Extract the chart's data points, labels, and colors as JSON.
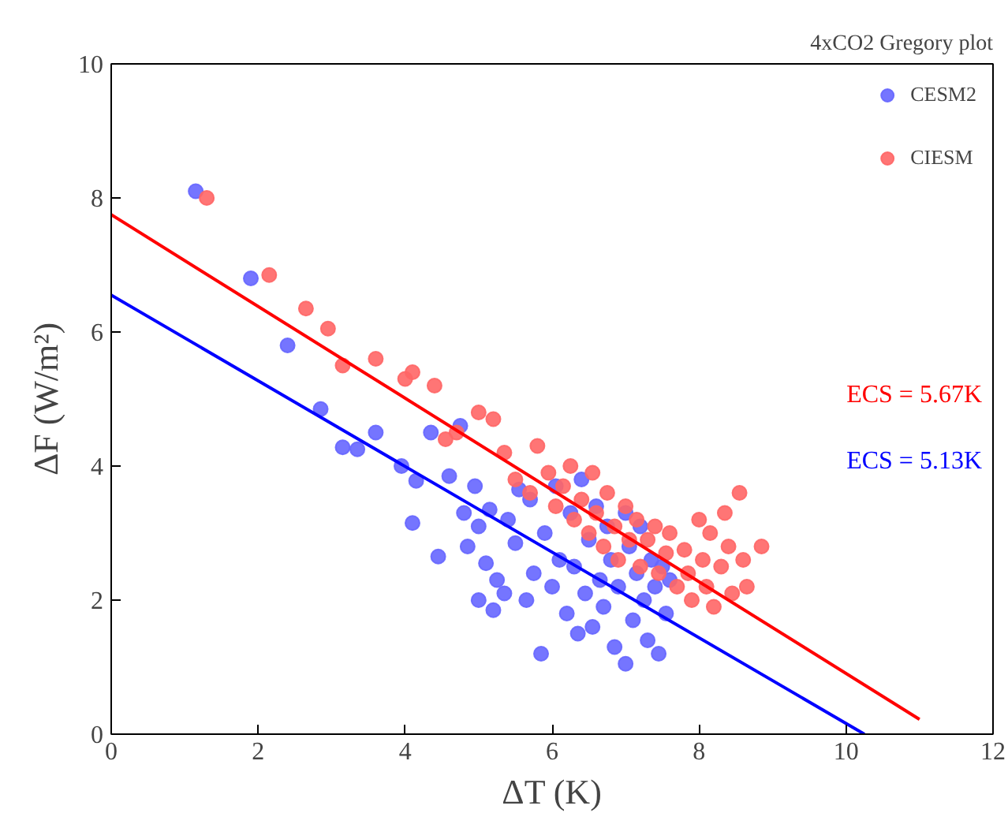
{
  "chart_data": {
    "type": "scatter",
    "title": "4xCO2 Gregory plot",
    "xlabel": "ΔT (K)",
    "ylabel": "ΔF (W/m²)",
    "xlim": [
      0,
      12
    ],
    "ylim": [
      0,
      10
    ],
    "xticks": [
      0,
      2,
      4,
      6,
      8,
      10,
      12
    ],
    "yticks": [
      0,
      2,
      4,
      6,
      8,
      10
    ],
    "grid": false,
    "legend": "top right",
    "series": [
      {
        "name": "CESM2",
        "color": "#6666ff",
        "marker": "circle",
        "x": [
          1.15,
          1.9,
          2.4,
          2.85,
          3.15,
          3.35,
          3.6,
          3.95,
          4.1,
          4.15,
          4.35,
          4.45,
          4.6,
          4.75,
          4.8,
          4.85,
          4.95,
          5.0,
          5.0,
          5.1,
          5.15,
          5.2,
          5.25,
          5.35,
          5.4,
          5.5,
          5.55,
          5.65,
          5.7,
          5.75,
          5.85,
          5.9,
          6.0,
          6.05,
          6.1,
          6.2,
          6.25,
          6.3,
          6.35,
          6.4,
          6.45,
          6.5,
          6.55,
          6.6,
          6.65,
          6.7,
          6.75,
          6.8,
          6.85,
          6.9,
          7.0,
          7.0,
          7.05,
          7.1,
          7.15,
          7.2,
          7.25,
          7.3,
          7.35,
          7.4,
          7.45,
          7.5,
          7.55,
          7.6
        ],
        "values": [
          8.1,
          6.8,
          5.8,
          4.85,
          4.28,
          4.25,
          4.5,
          4.0,
          3.15,
          3.78,
          4.5,
          2.65,
          3.85,
          4.6,
          3.3,
          2.8,
          3.7,
          2.0,
          3.1,
          2.55,
          3.35,
          1.85,
          2.3,
          2.1,
          3.2,
          2.85,
          3.65,
          2.0,
          3.5,
          2.4,
          1.2,
          3.0,
          2.2,
          3.7,
          2.6,
          1.8,
          3.3,
          2.5,
          1.5,
          3.8,
          2.1,
          2.9,
          1.6,
          3.4,
          2.3,
          1.9,
          3.1,
          2.6,
          1.3,
          2.2,
          3.3,
          1.05,
          2.8,
          1.7,
          2.4,
          3.1,
          2.0,
          1.4,
          2.6,
          2.2,
          1.2,
          2.5,
          1.8,
          2.3
        ]
      },
      {
        "name": "CIESM",
        "color": "#ff6666",
        "marker": "circle",
        "x": [
          1.3,
          2.15,
          2.65,
          2.95,
          3.15,
          3.6,
          4.0,
          4.1,
          4.4,
          4.55,
          4.7,
          5.0,
          5.2,
          5.35,
          5.5,
          5.7,
          5.8,
          5.95,
          6.05,
          6.15,
          6.25,
          6.3,
          6.4,
          6.5,
          6.55,
          6.6,
          6.7,
          6.75,
          6.85,
          6.9,
          7.0,
          7.05,
          7.15,
          7.2,
          7.3,
          7.4,
          7.45,
          7.55,
          7.6,
          7.7,
          7.8,
          7.85,
          7.9,
          8.0,
          8.05,
          8.1,
          8.15,
          8.2,
          8.3,
          8.35,
          8.4,
          8.45,
          8.55,
          8.6,
          8.65,
          8.85
        ],
        "values": [
          8.0,
          6.85,
          6.35,
          6.05,
          5.5,
          5.6,
          5.3,
          5.4,
          5.2,
          4.4,
          4.5,
          4.8,
          4.7,
          4.2,
          3.8,
          3.6,
          4.3,
          3.9,
          3.4,
          3.7,
          4.0,
          3.2,
          3.5,
          3.0,
          3.9,
          3.3,
          2.8,
          3.6,
          3.1,
          2.6,
          3.4,
          2.9,
          3.2,
          2.5,
          2.9,
          3.1,
          2.4,
          2.7,
          3.0,
          2.2,
          2.75,
          2.4,
          2.0,
          3.2,
          2.6,
          2.2,
          3.0,
          1.9,
          2.5,
          3.3,
          2.8,
          2.1,
          3.6,
          2.6,
          2.2,
          2.8
        ]
      },
      {
        "type": "line",
        "color": "#ff0000",
        "x": [
          0,
          11
        ],
        "values": [
          7.75,
          0.22
        ]
      },
      {
        "type": "line",
        "color": "#0000ff",
        "x": [
          0,
          10.25
        ],
        "values": [
          6.55,
          0
        ]
      }
    ],
    "annotations": [
      "ECS = 5.67K",
      "ECS = 5.13K"
    ]
  }
}
